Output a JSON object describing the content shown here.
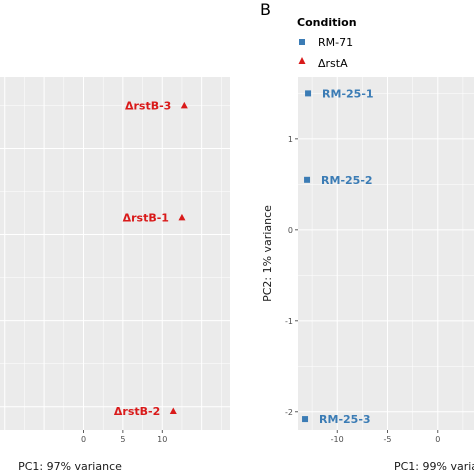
{
  "panel_label_b": "B",
  "legend": {
    "title": "Condition",
    "entries": [
      {
        "label": "RM-71",
        "color": "#3b7cb5",
        "shape": "square"
      },
      {
        "label": "ΔrstA",
        "color": "#d91a1a",
        "shape": "triangle"
      }
    ]
  },
  "chart_data": [
    {
      "type": "scatter",
      "xlabel": "PC1: 97% variance",
      "ylabel": "",
      "xlim": [
        -10.6,
        18.6
      ],
      "ylim": [
        -2.27,
        1.83
      ],
      "x_ticks": [
        0,
        5,
        10
      ],
      "y_ticks": [],
      "grid": true,
      "series": [
        {
          "color": "#d91a1a",
          "marker": "triangle",
          "points": [
            {
              "x": 12.8,
              "y": 1.5,
              "label": "ΔrstB-3"
            },
            {
              "x": 12.5,
              "y": 0.2,
              "label": "ΔrstB-1"
            },
            {
              "x": 11.4,
              "y": -2.05,
              "label": "ΔrstB-2"
            }
          ]
        }
      ]
    },
    {
      "type": "scatter",
      "xlabel": "PC1: 99% varia",
      "ylabel": "PC2: 1% variance",
      "xlim": [
        -13.9,
        3.6
      ],
      "ylim": [
        -2.2,
        1.68
      ],
      "x_ticks": [
        -10,
        -5,
        0
      ],
      "y_ticks": [
        -2,
        -1,
        0,
        1
      ],
      "grid": true,
      "series": [
        {
          "color": "#3b7cb5",
          "marker": "square",
          "points": [
            {
              "x": -12.9,
              "y": 1.5,
              "label": "RM-25-1"
            },
            {
              "x": -13.0,
              "y": 0.55,
              "label": "RM-25-2"
            },
            {
              "x": -13.2,
              "y": -2.08,
              "label": "RM-25-3"
            }
          ]
        }
      ]
    }
  ]
}
